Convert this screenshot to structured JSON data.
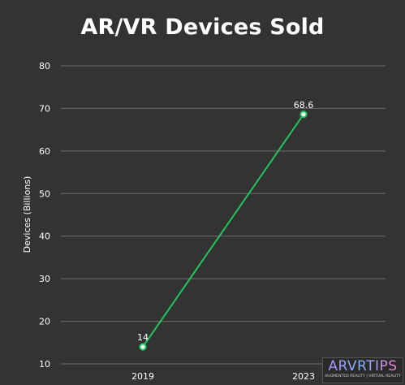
{
  "chart_data": {
    "type": "line",
    "title": "AR/VR Devices Sold",
    "xlabel": "",
    "ylabel": "Devices (Billions)",
    "categories": [
      "2019",
      "2023"
    ],
    "series": [
      {
        "values": [
          14,
          68.6
        ],
        "color": "#22c55e"
      }
    ],
    "data_labels": [
      "14",
      "68.6"
    ],
    "ylim": [
      10,
      80
    ],
    "yticks": [
      10,
      20,
      30,
      40,
      50,
      60,
      70,
      80
    ],
    "grid": true,
    "legend": "none"
  },
  "watermark": {
    "logo": "ARVRTIPS",
    "tagline": "AUGMENTED REALITY | VIRTUAL REALITY"
  },
  "colors": {
    "background": "#333333",
    "gridline": "#6b6b6b",
    "line": "#22c55e",
    "text": "#ffffff"
  }
}
